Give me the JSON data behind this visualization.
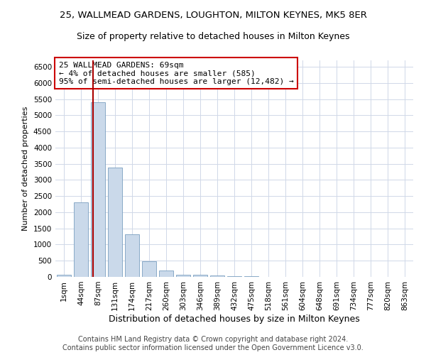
{
  "title": "25, WALLMEAD GARDENS, LOUGHTON, MILTON KEYNES, MK5 8ER",
  "subtitle": "Size of property relative to detached houses in Milton Keynes",
  "xlabel": "Distribution of detached houses by size in Milton Keynes",
  "ylabel": "Number of detached properties",
  "footer_line1": "Contains HM Land Registry data © Crown copyright and database right 2024.",
  "footer_line2": "Contains public sector information licensed under the Open Government Licence v3.0.",
  "annotation_line1": "25 WALLMEAD GARDENS: 69sqm",
  "annotation_line2": "← 4% of detached houses are smaller (585)",
  "annotation_line3": "95% of semi-detached houses are larger (12,482) →",
  "bar_color": "#cad9ea",
  "bar_edgecolor": "#7a9fc0",
  "marker_color": "#aa0000",
  "annotation_box_edgecolor": "#cc0000",
  "background_color": "#ffffff",
  "grid_color": "#d0d8e8",
  "categories": [
    "1sqm",
    "44sqm",
    "87sqm",
    "131sqm",
    "174sqm",
    "217sqm",
    "260sqm",
    "303sqm",
    "346sqm",
    "389sqm",
    "432sqm",
    "475sqm",
    "518sqm",
    "561sqm",
    "604sqm",
    "648sqm",
    "691sqm",
    "734sqm",
    "777sqm",
    "820sqm",
    "863sqm"
  ],
  "values": [
    75,
    2300,
    5400,
    3380,
    1320,
    490,
    190,
    75,
    60,
    50,
    30,
    30,
    0,
    0,
    0,
    0,
    0,
    0,
    0,
    0,
    0
  ],
  "ylim": [
    0,
    6700
  ],
  "yticks": [
    0,
    500,
    1000,
    1500,
    2000,
    2500,
    3000,
    3500,
    4000,
    4500,
    5000,
    5500,
    6000,
    6500
  ],
  "vline_x": 1.72,
  "title_fontsize": 9.5,
  "subtitle_fontsize": 9,
  "xlabel_fontsize": 9,
  "ylabel_fontsize": 8,
  "tick_fontsize": 7.5,
  "annotation_fontsize": 8,
  "footer_fontsize": 7
}
